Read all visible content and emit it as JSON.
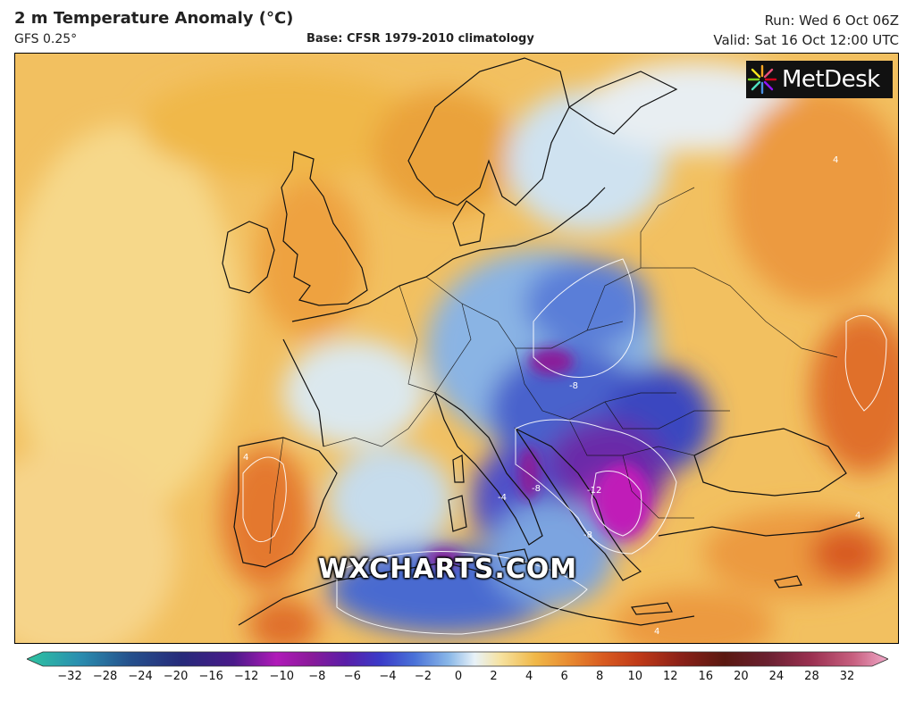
{
  "header": {
    "title": "2 m Temperature Anomaly (°C)",
    "model": "GFS 0.25°",
    "base": "Base: CFSR 1979-2010 climatology",
    "run": "Run: Wed 6 Oct 06Z",
    "valid": "Valid: Sat 16 Oct 12:00 UTC"
  },
  "logo": {
    "text": "MetDesk"
  },
  "watermark": "WXCHARTS.COM",
  "colorbar": {
    "ticks": [
      "−32",
      "−28",
      "−24",
      "−20",
      "−16",
      "−12",
      "−10",
      "−8",
      "−6",
      "−4",
      "−2",
      "0",
      "2",
      "4",
      "6",
      "8",
      "10",
      "12",
      "16",
      "20",
      "24",
      "28",
      "32"
    ],
    "colors": [
      "#2ec4a0",
      "#2a8fb0",
      "#25508c",
      "#262a7a",
      "#4a1a8a",
      "#8a1a9a",
      "#b01ab8",
      "#5a1ea8",
      "#3a3ac8",
      "#4a72d8",
      "#8ab8e8",
      "#e8f2f8",
      "#f6e2a0",
      "#f0b848",
      "#e88a30",
      "#d85a20",
      "#c03a18",
      "#8a2018",
      "#5a1810",
      "#6a2030",
      "#9a3050",
      "#c86080",
      "#f0a8c8"
    ]
  },
  "map_labels": {
    "contour_values": [
      "-4",
      "-8",
      "-8",
      "-8",
      "-8",
      "-12",
      "-8",
      "-8",
      "4",
      "4",
      "4",
      "4",
      "4",
      "4",
      "4",
      "4"
    ],
    "colors": {
      "warm": "#f0b848",
      "cool": "#8ab8e8",
      "cold": "#3a3ac8",
      "very_cold": "#8a1a9a",
      "hot": "#d85a20"
    }
  }
}
